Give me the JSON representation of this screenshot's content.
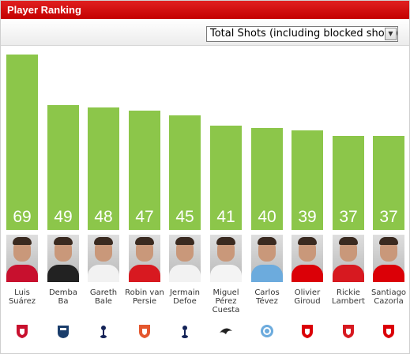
{
  "header": {
    "title": "Player Ranking"
  },
  "filter": {
    "selected": "Total Shots (including blocked shots)"
  },
  "chart_data": {
    "type": "bar",
    "categories": [
      "Luis Suárez",
      "Demba Ba",
      "Gareth Bale",
      "Robin van Persie",
      "Jermain Defoe",
      "Miguel Pérez Cuesta",
      "Carlos Tévez",
      "Olivier Giroud",
      "Rickie Lambert",
      "Santiago Cazorla"
    ],
    "values": [
      69,
      49,
      48,
      47,
      45,
      41,
      40,
      39,
      37,
      37
    ],
    "ylim": [
      0,
      72
    ],
    "bar_color": "#8cc64a"
  },
  "players": [
    {
      "name_lines": [
        "Luis",
        "Suárez"
      ],
      "club_icon": "liverpool-crest-icon",
      "shirt_color": "#c8102e",
      "club_color": "#c8102e"
    },
    {
      "name_lines": [
        "Demba",
        "Ba"
      ],
      "club_icon": "newcastle-crest-icon",
      "shirt_color": "#222222",
      "club_color": "#1a3d6b"
    },
    {
      "name_lines": [
        "Gareth",
        "Bale"
      ],
      "club_icon": "tottenham-crest-icon",
      "shirt_color": "#f2f2f2",
      "club_color": "#132257"
    },
    {
      "name_lines": [
        "Robin van",
        "Persie"
      ],
      "club_icon": "manchester-united-crest-icon",
      "shirt_color": "#d81920",
      "club_color": "#e4572e"
    },
    {
      "name_lines": [
        "Jermain",
        "Defoe"
      ],
      "club_icon": "tottenham-crest-icon",
      "shirt_color": "#f2f2f2",
      "club_color": "#132257"
    },
    {
      "name_lines": [
        "Miguel",
        "Pérez",
        "Cuesta"
      ],
      "club_icon": "swansea-crest-icon",
      "shirt_color": "#f4f4f4",
      "club_color": "#222222"
    },
    {
      "name_lines": [
        "Carlos",
        "Tévez"
      ],
      "club_icon": "manchester-city-crest-icon",
      "shirt_color": "#6cabdd",
      "club_color": "#6cabdd"
    },
    {
      "name_lines": [
        "Olivier",
        "Giroud"
      ],
      "club_icon": "arsenal-crest-icon",
      "shirt_color": "#db0007",
      "club_color": "#db0007"
    },
    {
      "name_lines": [
        "Rickie",
        "Lambert"
      ],
      "club_icon": "southampton-crest-icon",
      "shirt_color": "#d71920",
      "club_color": "#d71920"
    },
    {
      "name_lines": [
        "Santiago",
        "Cazorla"
      ],
      "club_icon": "arsenal-crest-icon",
      "shirt_color": "#db0007",
      "club_color": "#db0007"
    }
  ]
}
